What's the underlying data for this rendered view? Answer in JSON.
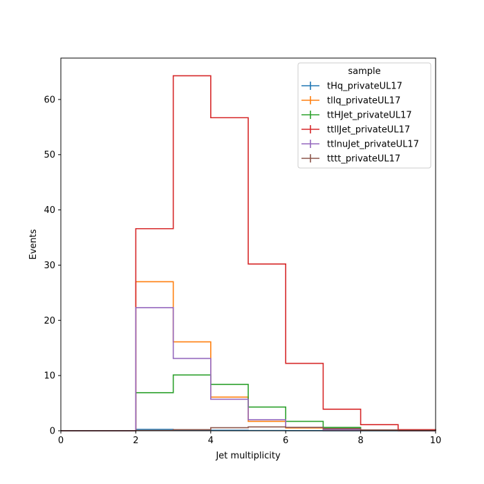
{
  "chart_data": {
    "type": "step-histogram",
    "xlabel": "Jet multiplicity",
    "ylabel": "Events",
    "xlim": [
      0,
      10
    ],
    "ylim": [
      0,
      67.5
    ],
    "x_ticks": [
      0,
      2,
      4,
      6,
      8,
      10
    ],
    "y_ticks": [
      0,
      10,
      20,
      30,
      40,
      50,
      60
    ],
    "bin_edges": [
      0,
      1,
      2,
      3,
      4,
      5,
      6,
      7,
      8,
      9,
      10
    ],
    "legend": {
      "title": "sample",
      "location": "top-right"
    },
    "series": [
      {
        "name": "tHq_privateUL17",
        "color": "#1f77b4",
        "values": [
          0,
          0,
          0.25,
          0.15,
          0.08,
          0.04,
          0.02,
          0.01,
          0.0,
          0.0
        ]
      },
      {
        "name": "tllq_privateUL17",
        "color": "#ff7f0e",
        "values": [
          0,
          0,
          27.0,
          16.1,
          6.1,
          1.7,
          0.5,
          0.2,
          0.05,
          0.0
        ]
      },
      {
        "name": "ttHJet_privateUL17",
        "color": "#2ca02c",
        "values": [
          0,
          0,
          6.9,
          10.1,
          8.4,
          4.3,
          1.7,
          0.6,
          0.15,
          0.05
        ]
      },
      {
        "name": "ttllJet_privateUL17",
        "color": "#d62728",
        "values": [
          0,
          0,
          36.6,
          64.3,
          56.7,
          30.2,
          12.2,
          3.9,
          1.1,
          0.2
        ]
      },
      {
        "name": "ttlnuJet_privateUL17",
        "color": "#9467bd",
        "values": [
          0,
          0,
          22.3,
          13.1,
          5.7,
          2.0,
          0.6,
          0.2,
          0.05,
          0.0
        ]
      },
      {
        "name": "tttt_privateUL17",
        "color": "#8c564b",
        "values": [
          0,
          0,
          0.05,
          0.2,
          0.55,
          0.7,
          0.6,
          0.4,
          0.15,
          0.05
        ]
      }
    ]
  }
}
